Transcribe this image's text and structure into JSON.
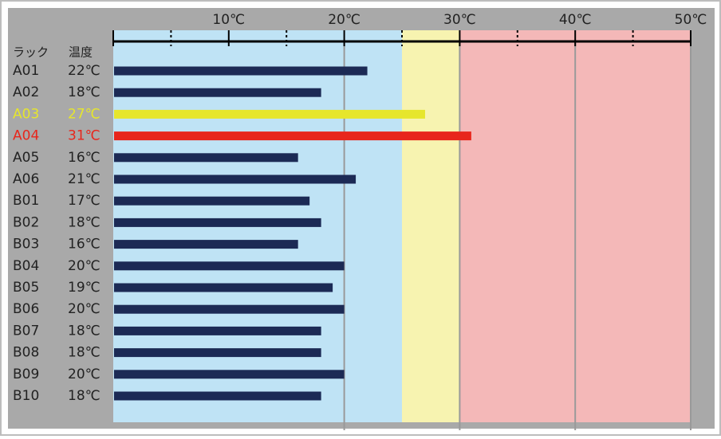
{
  "chart_data": {
    "type": "hbar",
    "header_rack": "ラック",
    "header_temp": "温度",
    "categories": [
      "A01",
      "A02",
      "A03",
      "A04",
      "A05",
      "A06",
      "B01",
      "B02",
      "B03",
      "B04",
      "B05",
      "B06",
      "B07",
      "B08",
      "B09",
      "B10"
    ],
    "values": [
      22,
      18,
      27,
      31,
      16,
      21,
      17,
      18,
      16,
      20,
      19,
      20,
      18,
      18,
      20,
      18
    ],
    "value_labels": [
      "22℃",
      "18℃",
      "27℃",
      "31℃",
      "16℃",
      "21℃",
      "17℃",
      "18℃",
      "16℃",
      "20℃",
      "19℃",
      "20℃",
      "18℃",
      "18℃",
      "20℃",
      "18℃"
    ],
    "colors": [
      "#1c2a55",
      "#1c2a55",
      "#e6e62c",
      "#e8261c",
      "#1c2a55",
      "#1c2a55",
      "#1c2a55",
      "#1c2a55",
      "#1c2a55",
      "#1c2a55",
      "#1c2a55",
      "#1c2a55",
      "#1c2a55",
      "#1c2a55",
      "#1c2a55",
      "#1c2a55"
    ],
    "label_colors": [
      "#222222",
      "#222222",
      "#e6e62c",
      "#e8261c",
      "#222222",
      "#222222",
      "#222222",
      "#222222",
      "#222222",
      "#222222",
      "#222222",
      "#222222",
      "#222222",
      "#222222",
      "#222222",
      "#222222"
    ],
    "xlim": [
      0,
      50
    ],
    "xticks": [
      {
        "value": 10,
        "label": "10℃"
      },
      {
        "value": 20,
        "label": "20℃"
      },
      {
        "value": 30,
        "label": "30℃"
      },
      {
        "value": 40,
        "label": "40℃"
      },
      {
        "value": 50,
        "label": "50℃"
      }
    ],
    "minor_xticks": [
      5,
      15,
      25,
      35,
      45
    ],
    "gridlines": [
      20,
      30,
      40,
      50
    ],
    "zones": [
      {
        "from": 0,
        "to": 25,
        "color": "#bfe3f5"
      },
      {
        "from": 25,
        "to": 30,
        "color": "#f7f3b0"
      },
      {
        "from": 30,
        "to": 50,
        "color": "#f4b8b8"
      }
    ]
  }
}
